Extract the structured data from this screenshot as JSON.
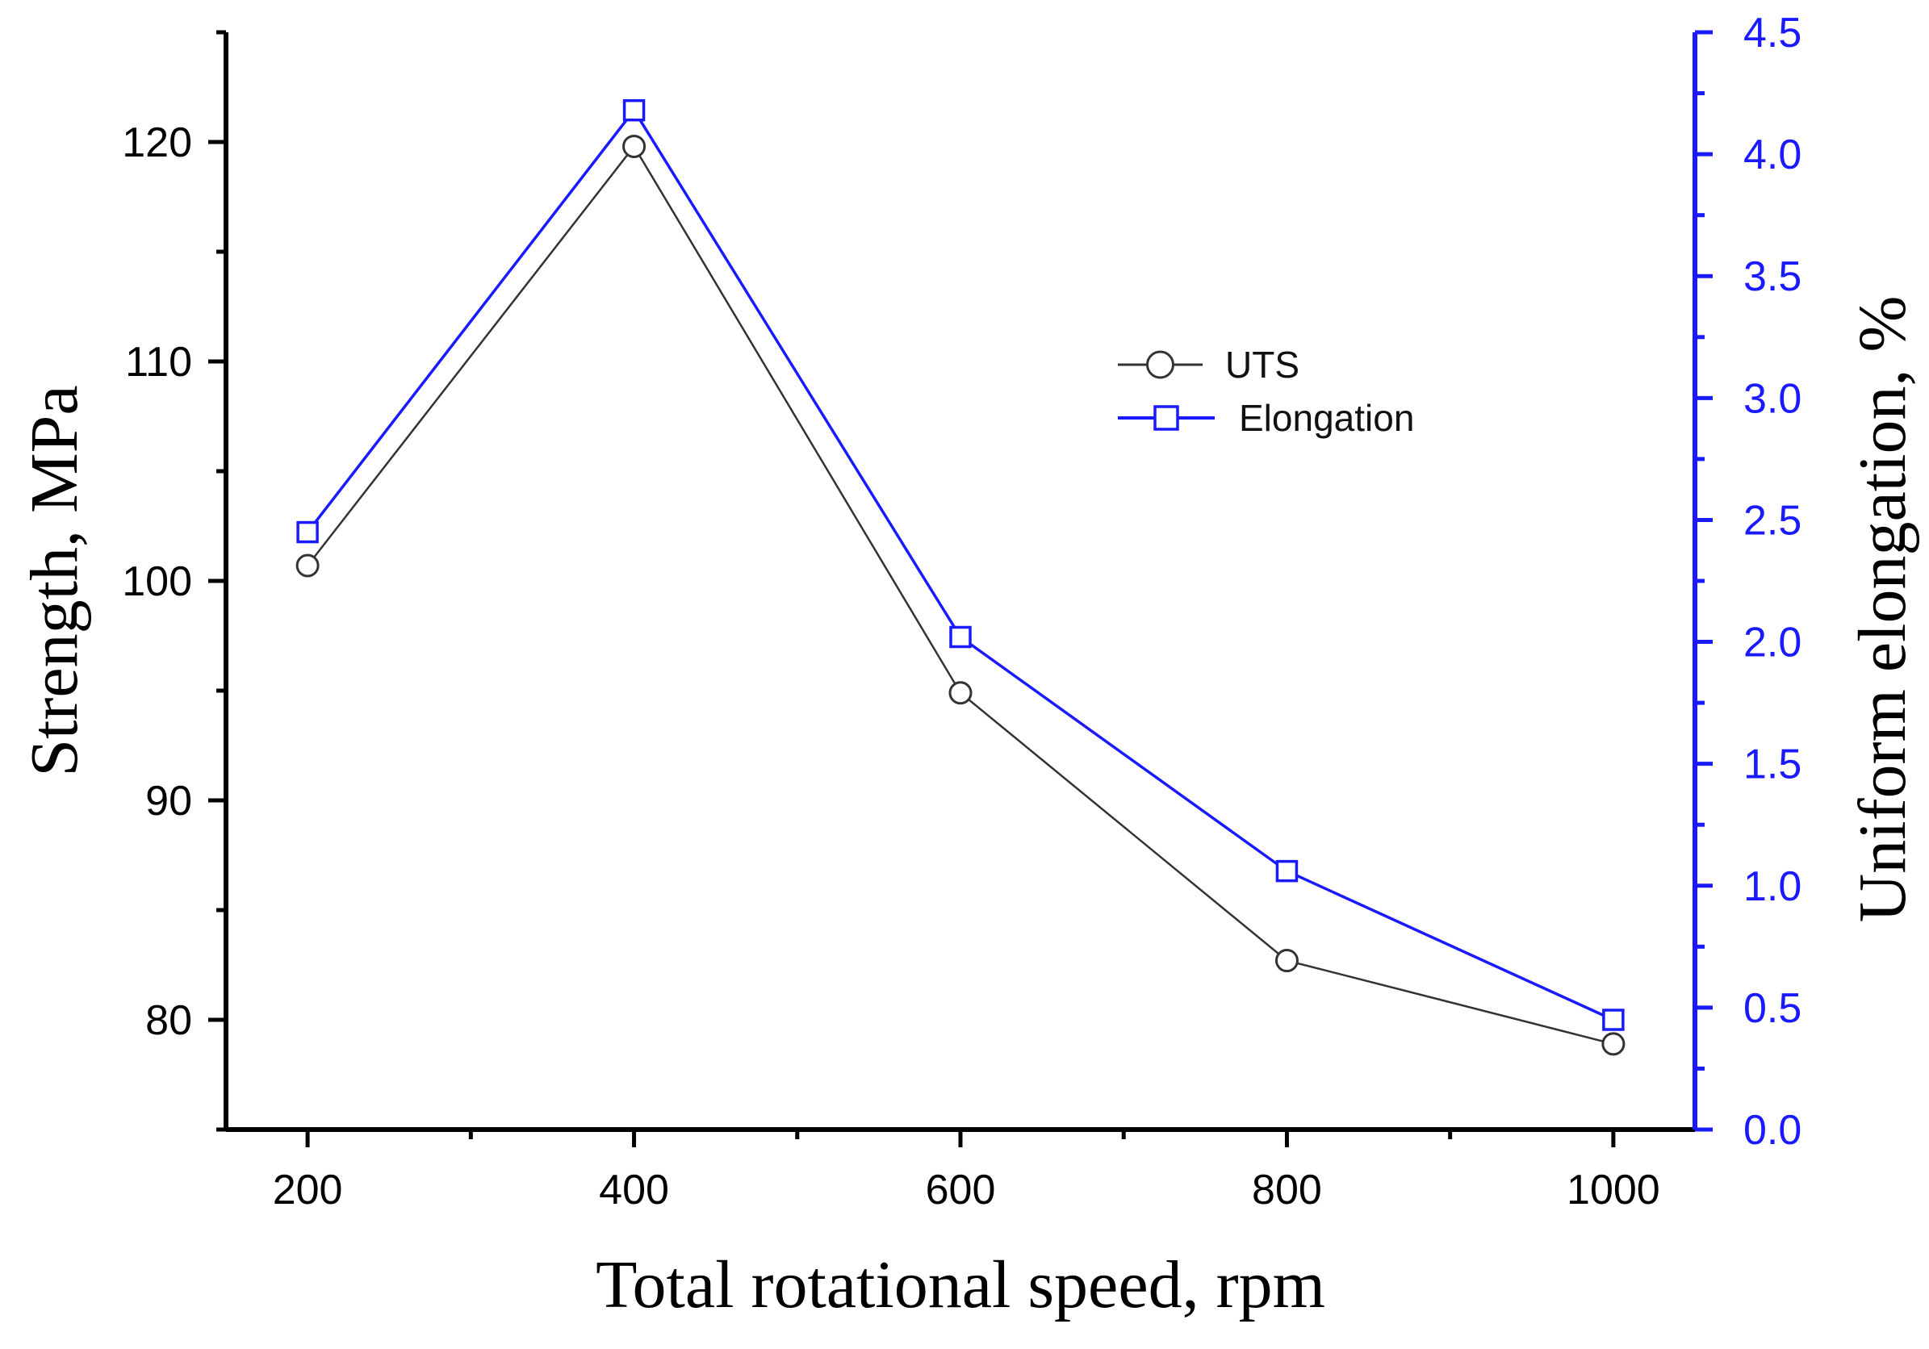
{
  "chart_data": {
    "type": "line",
    "title": "",
    "xlabel": "Total rotational speed, rpm",
    "ylabel": "Strength, MPa",
    "y2label": "Uniform elongation, %",
    "xlim": [
      150,
      1050
    ],
    "ylim": [
      75,
      125
    ],
    "y2lim": [
      0,
      4.5
    ],
    "x": [
      200,
      400,
      600,
      800,
      1000
    ],
    "x_ticks": [
      200,
      400,
      600,
      800,
      1000
    ],
    "x_tick_labels": [
      "200",
      "400",
      "600",
      "800",
      "1000"
    ],
    "y_ticks": [
      80,
      90,
      100,
      110,
      120
    ],
    "y_tick_labels": [
      "80",
      "90",
      "100",
      "110",
      "120"
    ],
    "y2_ticks": [
      0,
      0.5,
      1,
      1.5,
      2,
      2.5,
      3,
      3.5,
      4,
      4.5
    ],
    "y2_tick_labels": [
      "0.0",
      "0.5",
      "1.0",
      "1.5",
      "2.0",
      "2.5",
      "3.0",
      "3.5",
      "4.0",
      "4.5"
    ],
    "grid": false,
    "legend_position": "upper-right-center",
    "series": [
      {
        "name": "UTS",
        "axis": "left",
        "marker": "circle",
        "color": "#333333",
        "values": [
          100.7,
          119.8,
          94.9,
          82.7,
          78.9
        ]
      },
      {
        "name": "Elongation",
        "axis": "right",
        "marker": "square",
        "color": "#1a1aff",
        "values": [
          2.45,
          4.18,
          2.02,
          1.06,
          0.45
        ]
      }
    ]
  },
  "colors": {
    "left_axis": "#000000",
    "right_axis": "#1a1aff"
  }
}
